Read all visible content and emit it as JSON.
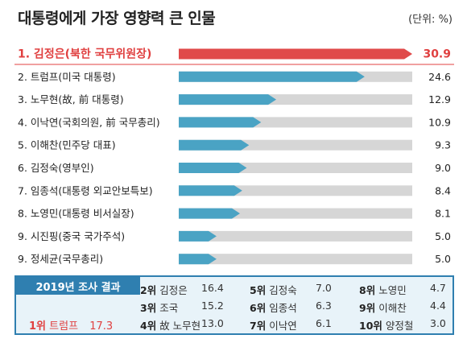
{
  "title": "대통령에게 가장 영향력 큰 인물",
  "unit": "(단위: %)",
  "chart_data": {
    "type": "bar",
    "orientation": "horizontal",
    "title": "대통령에게 가장 영향력 큰 인물",
    "unit": "(단위: %)",
    "categories": [
      "1. 김정은(북한 국무위원장)",
      "2. 트럼프(미국 대통령)",
      "3. 노무현(故, 前 대통령)",
      "4. 이낙연(국회의원, 前 국무총리)",
      "5. 이해찬(민주당 대표)",
      "6. 김정숙(영부인)",
      "7. 임종석(대통령 외교안보특보)",
      "8. 노영민(대통령 비서실장)",
      "9. 시진핑(중국 국가주석)",
      "9. 정세균(국무총리)"
    ],
    "values": [
      30.9,
      24.6,
      12.9,
      10.9,
      9.3,
      9.0,
      8.4,
      8.1,
      5.0,
      5.0
    ],
    "value_labels": [
      "30.9",
      "24.6",
      "12.9",
      "10.9",
      "9.3",
      "9.0",
      "8.4",
      "8.1",
      "5.0",
      "5.0"
    ],
    "xlim": [
      0,
      30.9
    ],
    "colors": {
      "highlight": "#e04a4a",
      "bar": "#4aa3c4",
      "track": "#d6d6d6"
    },
    "grid": false,
    "legend": "none"
  },
  "panel": {
    "heading": "2019년 조사 결과",
    "first": {
      "rank": "1위",
      "name": "트럼프",
      "value": "17.3"
    },
    "rows": [
      [
        {
          "rank": "2위",
          "name": "김정은",
          "value": "16.4"
        },
        {
          "rank": "5위",
          "name": "김정숙",
          "value": "7.0"
        },
        {
          "rank": "8위",
          "name": "노영민",
          "value": "4.7"
        }
      ],
      [
        {
          "rank": "3위",
          "name": "조국",
          "value": "15.2"
        },
        {
          "rank": "6위",
          "name": "임종석",
          "value": "6.3"
        },
        {
          "rank": "9위",
          "name": "이해찬",
          "value": "4.4"
        }
      ],
      [
        {
          "rank": "4위",
          "name": "故 노무현",
          "value": "13.0"
        },
        {
          "rank": "7위",
          "name": "이낙연",
          "value": "6.1"
        },
        {
          "rank": "10위",
          "name": "양정철",
          "value": "3.0"
        }
      ]
    ]
  }
}
